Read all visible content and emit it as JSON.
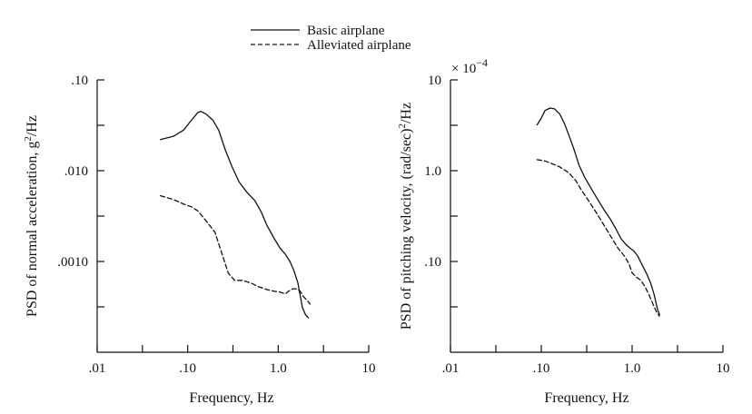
{
  "legend": {
    "items": [
      {
        "label": "Basic airplane",
        "style": "solid"
      },
      {
        "label": "Alleviated airplane",
        "style": "dashed"
      }
    ]
  },
  "chart_data": [
    {
      "type": "line",
      "xlabel": "Frequency, Hz",
      "ylabel_main": "PSD of normal acceleration, g",
      "ylabel_sup": "2",
      "ylabel_tail": "/Hz",
      "xscale": "log",
      "yscale": "log",
      "xlim": [
        0.01,
        10
      ],
      "ylim": [
        0.0001,
        0.1
      ],
      "x_tick_labels": [
        ".01",
        ".10",
        "1.0",
        "10"
      ],
      "y_tick_labels": [
        ".10",
        ".010",
        ".0010"
      ],
      "legend_position": "top-center",
      "series": [
        {
          "name": "Basic airplane",
          "style": "solid",
          "points": [
            [
              0.05,
              0.022
            ],
            [
              0.07,
              0.024
            ],
            [
              0.09,
              0.028
            ],
            [
              0.11,
              0.036
            ],
            [
              0.13,
              0.044
            ],
            [
              0.14,
              0.045
            ],
            [
              0.16,
              0.042
            ],
            [
              0.19,
              0.036
            ],
            [
              0.22,
              0.028
            ],
            [
              0.26,
              0.017
            ],
            [
              0.31,
              0.011
            ],
            [
              0.37,
              0.0075
            ],
            [
              0.45,
              0.0058
            ],
            [
              0.55,
              0.0047
            ],
            [
              0.65,
              0.0035
            ],
            [
              0.75,
              0.0025
            ],
            [
              0.9,
              0.0018
            ],
            [
              1.05,
              0.0014
            ],
            [
              1.2,
              0.0012
            ],
            [
              1.35,
              0.001
            ],
            [
              1.5,
              0.00078
            ],
            [
              1.65,
              0.00058
            ],
            [
              1.75,
              0.00042
            ],
            [
              1.85,
              0.00031
            ],
            [
              2.0,
              0.00026
            ],
            [
              2.15,
              0.00024
            ]
          ]
        },
        {
          "name": "Alleviated airplane",
          "style": "dashed",
          "points": [
            [
              0.05,
              0.0053
            ],
            [
              0.07,
              0.0048
            ],
            [
              0.09,
              0.0043
            ],
            [
              0.11,
              0.004
            ],
            [
              0.13,
              0.0036
            ],
            [
              0.16,
              0.0028
            ],
            [
              0.2,
              0.0021
            ],
            [
              0.24,
              0.0012
            ],
            [
              0.28,
              0.00075
            ],
            [
              0.33,
              0.00062
            ],
            [
              0.4,
              0.00062
            ],
            [
              0.5,
              0.00058
            ],
            [
              0.6,
              0.00053
            ],
            [
              0.75,
              0.00049
            ],
            [
              0.9,
              0.00047
            ],
            [
              1.05,
              0.00046
            ],
            [
              1.2,
              0.00044
            ],
            [
              1.3,
              0.00047
            ],
            [
              1.45,
              0.0005
            ],
            [
              1.6,
              0.0005
            ],
            [
              1.75,
              0.00047
            ],
            [
              1.9,
              0.00041
            ],
            [
              2.1,
              0.00037
            ],
            [
              2.25,
              0.00034
            ]
          ]
        }
      ]
    },
    {
      "type": "line",
      "xlabel": "Frequency, Hz",
      "ylabel_main": "PSD of pitching velocity, (rad/sec)",
      "ylabel_sup": "2",
      "ylabel_tail": "/Hz",
      "multiplier_label": "× 10",
      "multiplier_exp": "−4",
      "xscale": "log",
      "yscale": "log",
      "xlim": [
        0.01,
        10
      ],
      "ylim": [
        0.01,
        10
      ],
      "x_tick_labels": [
        ".01",
        ".10",
        "1.0",
        "10"
      ],
      "y_tick_labels": [
        "10",
        "1.0",
        ".10"
      ],
      "series": [
        {
          "name": "Basic airplane",
          "style": "solid",
          "points": [
            [
              0.09,
              3.2
            ],
            [
              0.1,
              3.8
            ],
            [
              0.11,
              4.6
            ],
            [
              0.125,
              4.9
            ],
            [
              0.14,
              4.8
            ],
            [
              0.16,
              4.2
            ],
            [
              0.18,
              3.3
            ],
            [
              0.2,
              2.5
            ],
            [
              0.23,
              1.7
            ],
            [
              0.26,
              1.15
            ],
            [
              0.3,
              0.85
            ],
            [
              0.36,
              0.62
            ],
            [
              0.43,
              0.46
            ],
            [
              0.5,
              0.36
            ],
            [
              0.58,
              0.29
            ],
            [
              0.66,
              0.23
            ],
            [
              0.75,
              0.18
            ],
            [
              0.85,
              0.155
            ],
            [
              0.95,
              0.14
            ],
            [
              1.05,
              0.13
            ],
            [
              1.15,
              0.115
            ],
            [
              1.3,
              0.09
            ],
            [
              1.45,
              0.073
            ],
            [
              1.6,
              0.058
            ],
            [
              1.75,
              0.043
            ],
            [
              1.9,
              0.03
            ],
            [
              2.0,
              0.026
            ]
          ]
        },
        {
          "name": "Alleviated airplane",
          "style": "dashed",
          "points": [
            [
              0.09,
              1.32
            ],
            [
              0.11,
              1.28
            ],
            [
              0.13,
              1.2
            ],
            [
              0.16,
              1.1
            ],
            [
              0.2,
              0.95
            ],
            [
              0.24,
              0.78
            ],
            [
              0.28,
              0.6
            ],
            [
              0.33,
              0.47
            ],
            [
              0.4,
              0.35
            ],
            [
              0.48,
              0.26
            ],
            [
              0.58,
              0.19
            ],
            [
              0.7,
              0.14
            ],
            [
              0.82,
              0.115
            ],
            [
              0.92,
              0.095
            ],
            [
              1.0,
              0.075
            ],
            [
              1.1,
              0.068
            ],
            [
              1.25,
              0.062
            ],
            [
              1.4,
              0.052
            ],
            [
              1.55,
              0.042
            ],
            [
              1.7,
              0.034
            ],
            [
              1.85,
              0.028
            ],
            [
              2.0,
              0.025
            ]
          ]
        }
      ]
    }
  ]
}
